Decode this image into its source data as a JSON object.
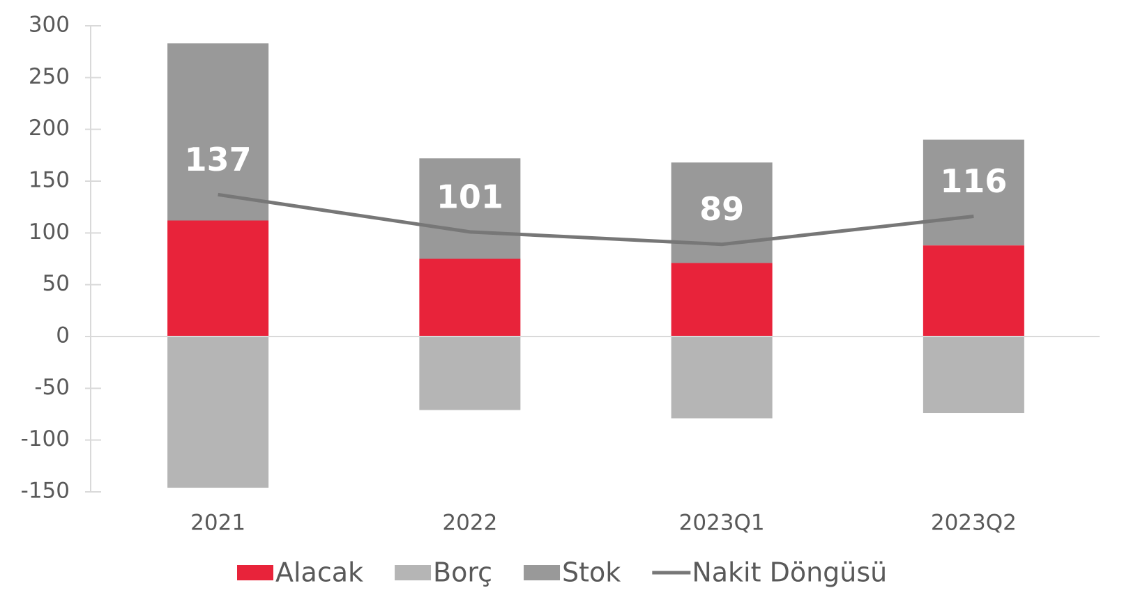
{
  "chart_data": {
    "type": "bar",
    "categories": [
      "2021",
      "2022",
      "2023Q1",
      "2023Q2"
    ],
    "series": [
      {
        "name": "Alacak",
        "color": "#e8233a",
        "values": [
          112,
          75,
          71,
          88
        ]
      },
      {
        "name": "Borç",
        "color": "#b5b5b5",
        "values": [
          -146,
          -71,
          -79,
          -74
        ]
      },
      {
        "name": "Stok",
        "color": "#999999",
        "values": [
          171,
          97,
          97,
          102
        ]
      },
      {
        "name": "Nakit Döngüsü",
        "type": "line",
        "color": "#777777",
        "values": [
          137,
          101,
          89,
          116
        ],
        "show_value_labels": true
      }
    ],
    "stacked": true,
    "ylim": [
      -150,
      300
    ],
    "yticks": [
      -150,
      -100,
      -50,
      0,
      50,
      100,
      150,
      200,
      250,
      300
    ],
    "grid": false,
    "legend": "bottom"
  }
}
